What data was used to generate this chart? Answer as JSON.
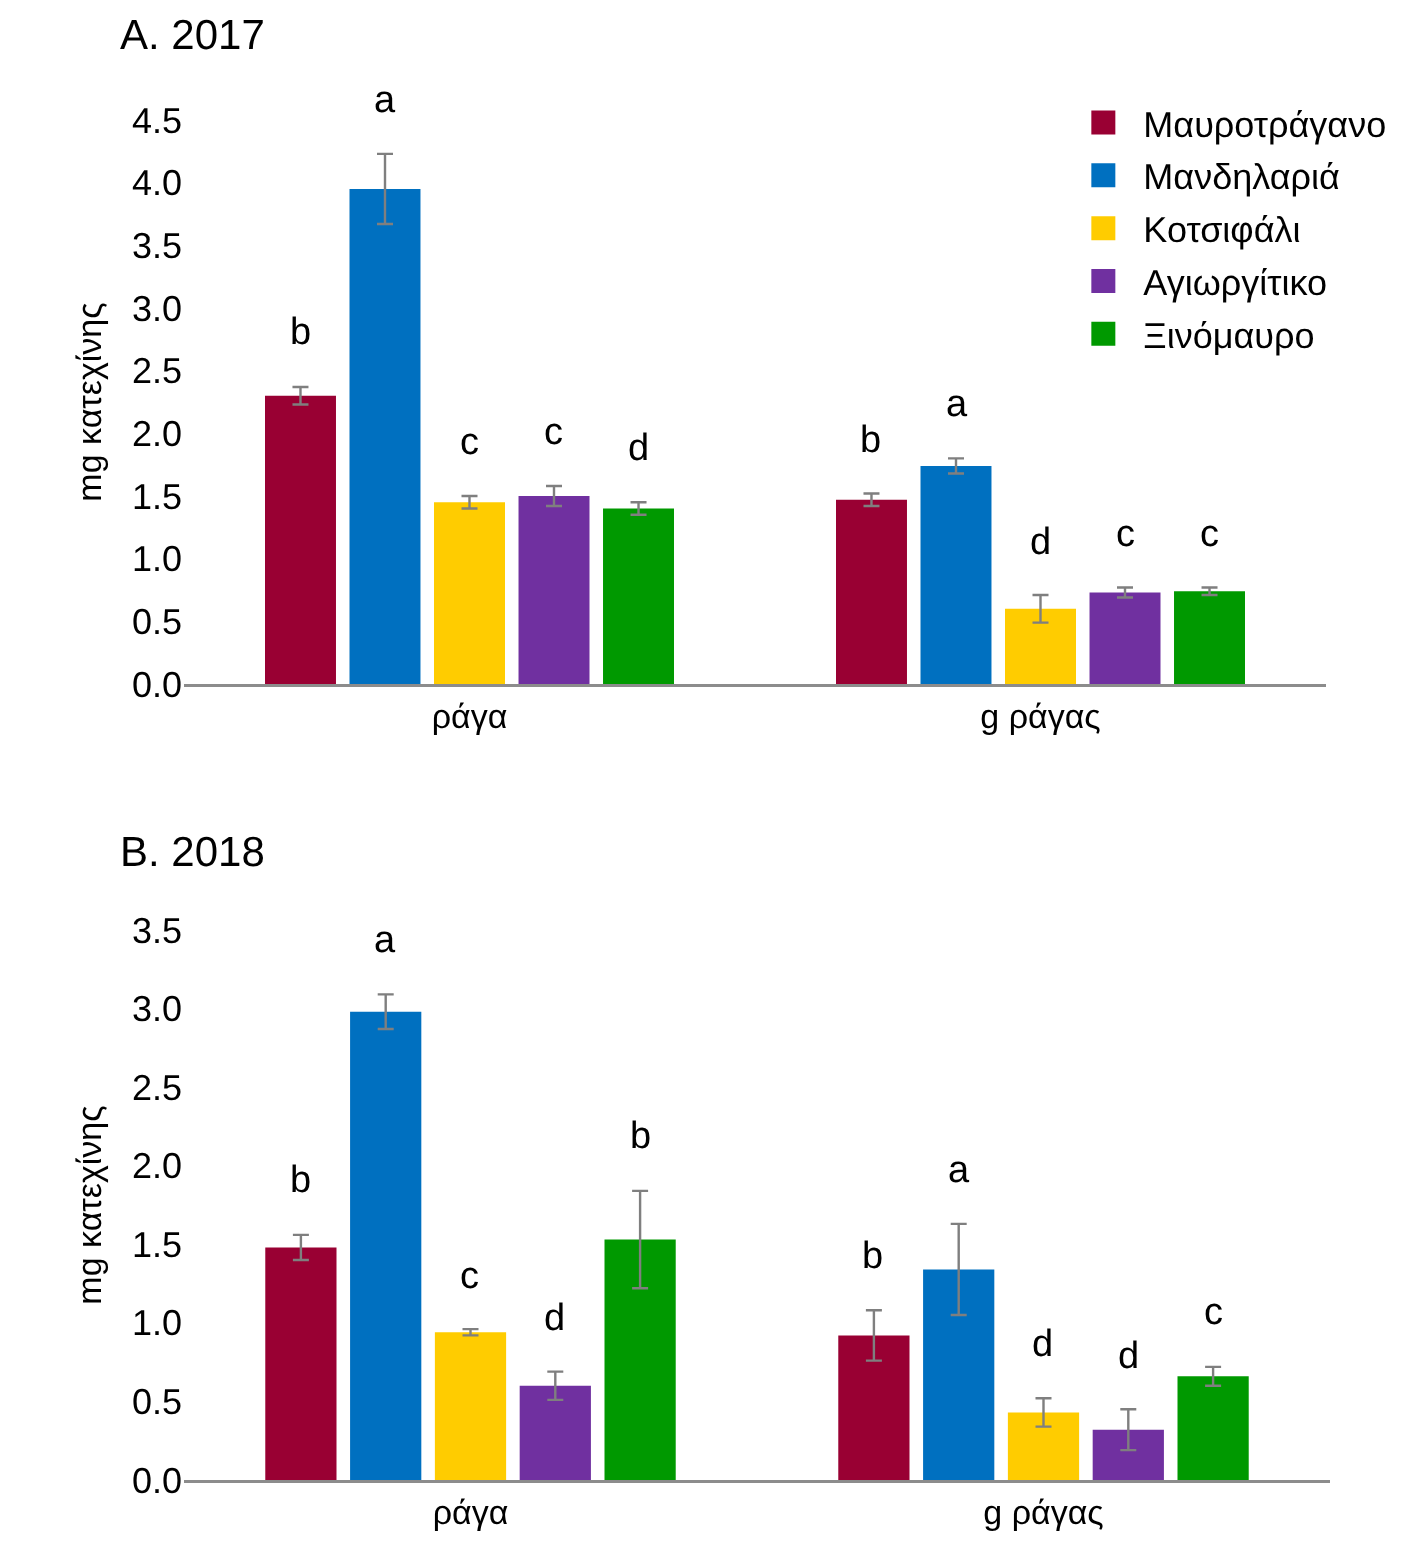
{
  "chart_data": [
    {
      "type": "bar",
      "title": "A. 2017",
      "ylabel": "mg κατεχίνης",
      "categories": [
        "ράγα",
        "g ράγας"
      ],
      "ylim": [
        0,
        4.5
      ],
      "yticks": [
        {
          "value": 0,
          "label": "0.0"
        },
        {
          "value": 0.5,
          "label": "0.5"
        },
        {
          "value": 1,
          "label": "1.0"
        },
        {
          "value": 1.5,
          "label": "1.5"
        },
        {
          "value": 2,
          "label": "2.0"
        },
        {
          "value": 2.5,
          "label": "2.5"
        },
        {
          "value": 3,
          "label": "3.0"
        },
        {
          "value": 3.5,
          "label": "3.5"
        },
        {
          "value": 4,
          "label": "4.0"
        },
        {
          "value": 4.5,
          "label": "4.5"
        }
      ],
      "grid": false,
      "legend": "top right",
      "series": [
        {
          "name": "Μαυροτράγανο",
          "color": "#990033",
          "values": [
            2.3,
            1.47
          ],
          "errors": [
            0.07,
            0.05
          ],
          "value_labels": [
            "b",
            "b"
          ]
        },
        {
          "name": "Μανδηλαριά",
          "color": "#0070c0",
          "values": [
            3.95,
            1.74
          ],
          "errors": [
            0.28,
            0.06
          ],
          "value_labels": [
            "a",
            "a"
          ]
        },
        {
          "name": "Κοτσιφάλι",
          "color": "#ffcc00",
          "values": [
            1.45,
            0.6
          ],
          "errors": [
            0.05,
            0.11
          ],
          "value_labels": [
            "c",
            "d"
          ]
        },
        {
          "name": "Αγιωργίτικο",
          "color": "#7030a0",
          "values": [
            1.5,
            0.73
          ],
          "errors": [
            0.08,
            0.04
          ],
          "value_labels": [
            "c",
            "c"
          ]
        },
        {
          "name": "Ξινόμαυρο",
          "color": "#009900",
          "values": [
            1.4,
            0.74
          ],
          "errors": [
            0.05,
            0.03
          ],
          "value_labels": [
            "d",
            "c"
          ]
        }
      ]
    },
    {
      "type": "bar",
      "title": "B. 2018",
      "ylabel": "mg κατεχίνης",
      "categories": [
        "ράγα",
        "g ράγας"
      ],
      "ylim": [
        0,
        3.5
      ],
      "yticks": [
        {
          "value": 0,
          "label": "0.0"
        },
        {
          "value": 0.5,
          "label": "0.5"
        },
        {
          "value": 1,
          "label": "1.0"
        },
        {
          "value": 1.5,
          "label": "1.5"
        },
        {
          "value": 2,
          "label": "2.0"
        },
        {
          "value": 2.5,
          "label": "2.5"
        },
        {
          "value": 3,
          "label": "3.0"
        },
        {
          "value": 3.5,
          "label": "3.5"
        }
      ],
      "grid": false,
      "series": [
        {
          "color": "#990033",
          "values": [
            1.48,
            0.92
          ],
          "errors": [
            0.08,
            0.16
          ],
          "value_labels": [
            "b",
            "b"
          ]
        },
        {
          "color": "#0070c0",
          "values": [
            2.98,
            1.34
          ],
          "errors": [
            0.11,
            0.29
          ],
          "value_labels": [
            "a",
            "a"
          ]
        },
        {
          "color": "#ffcc00",
          "values": [
            0.94,
            0.43
          ],
          "errors": [
            0.02,
            0.09
          ],
          "value_labels": [
            "c",
            "d"
          ]
        },
        {
          "color": "#7030a0",
          "values": [
            0.6,
            0.32
          ],
          "errors": [
            0.09,
            0.13
          ],
          "value_labels": [
            "d",
            "d"
          ]
        },
        {
          "color": "#009900",
          "values": [
            1.53,
            0.66
          ],
          "errors": [
            0.31,
            0.06
          ],
          "value_labels": [
            "b",
            "c"
          ]
        }
      ]
    }
  ]
}
